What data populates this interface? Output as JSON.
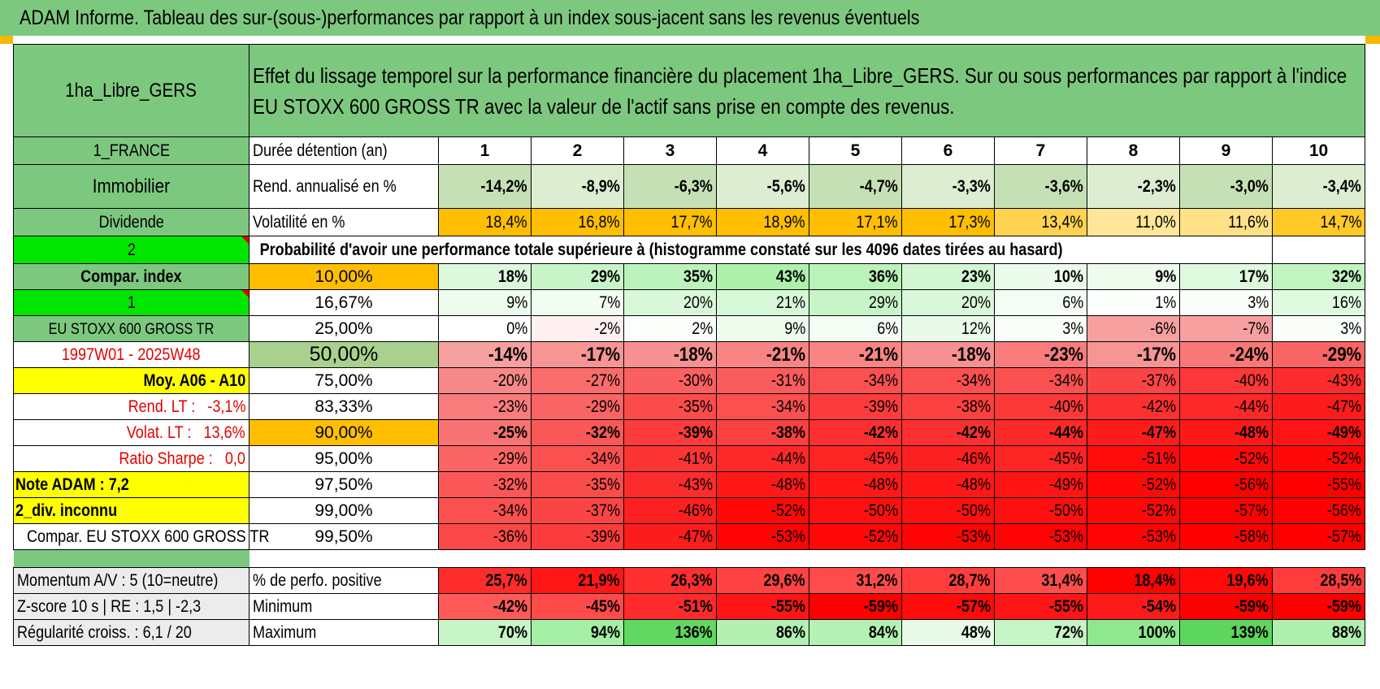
{
  "title": "ADAM Informe. Tableau des sur-(sous-)performances par rapport à un index sous-jacent sans les revenus éventuels",
  "colors": {
    "header_green": "#7dc87f",
    "bright_green": "#00e600",
    "yellow": "#ffff00",
    "orange": "#ffbf00",
    "label_red": "#e60000"
  },
  "left": {
    "name": "1ha_Libre_GERS",
    "country": "1_FRANCE",
    "category": "Immobilier",
    "income": "Dividende",
    "sel_a": "2",
    "compar_label": "Compar. index",
    "sel_b": "1",
    "index_name": "EU STOXX 600 GROSS TR",
    "period": "1997W01 - 2025W48",
    "moy": "Moy. A06 - A10",
    "rend_lt_label": "Rend. LT :",
    "rend_lt_value": "-3,1%",
    "volat_lt_label": "Volat. LT :",
    "volat_lt_value": "13,6%",
    "sharpe_label": "Ratio Sharpe :",
    "sharpe_value": "0,0",
    "note": "Note ADAM : 7,2",
    "div": "2_div. inconnu",
    "compar_full": "Compar. EU STOXX 600 GROSS TR"
  },
  "header_text": "Effet du lissage temporel sur la performance financière du placement 1ha_Libre_GERS. Sur ou sous performances par rapport à l'indice EU STOXX 600 GROSS TR avec la valeur de l'actif sans prise en compte des revenus.",
  "duration_label": "Durée détention (an)",
  "durations": [
    "1",
    "2",
    "3",
    "4",
    "5",
    "6",
    "7",
    "8",
    "9",
    "10"
  ],
  "rend_label": "Rend. annualisé en %",
  "rend": [
    "-14,2%",
    "-8,9%",
    "-6,3%",
    "-5,6%",
    "-4,7%",
    "-3,3%",
    "-3,6%",
    "-2,3%",
    "-3,0%",
    "-3,4%"
  ],
  "vol_label": "Volatilité en %",
  "vol": [
    "18,4%",
    "16,8%",
    "17,7%",
    "18,9%",
    "17,1%",
    "17,3%",
    "13,4%",
    "11,0%",
    "11,6%",
    "14,7%"
  ],
  "prob_text": "Probabilité d'avoir une performance totale supérieure à (histogramme constaté sur les 4096 dates tirées au hasard)",
  "quantiles": [
    {
      "label": "10,00%",
      "values": [
        "18%",
        "29%",
        "35%",
        "43%",
        "36%",
        "23%",
        "10%",
        "9%",
        "17%",
        "32%"
      ]
    },
    {
      "label": "16,67%",
      "values": [
        "9%",
        "7%",
        "20%",
        "21%",
        "29%",
        "20%",
        "6%",
        "1%",
        "3%",
        "16%"
      ]
    },
    {
      "label": "25,00%",
      "values": [
        "0%",
        "-2%",
        "2%",
        "9%",
        "6%",
        "12%",
        "3%",
        "-6%",
        "-7%",
        "3%"
      ]
    },
    {
      "label": "50,00%",
      "values": [
        "-14%",
        "-17%",
        "-18%",
        "-21%",
        "-21%",
        "-18%",
        "-23%",
        "-17%",
        "-24%",
        "-29%"
      ]
    },
    {
      "label": "75,00%",
      "values": [
        "-20%",
        "-27%",
        "-30%",
        "-31%",
        "-34%",
        "-34%",
        "-34%",
        "-37%",
        "-40%",
        "-43%"
      ]
    },
    {
      "label": "83,33%",
      "values": [
        "-23%",
        "-29%",
        "-35%",
        "-34%",
        "-39%",
        "-38%",
        "-40%",
        "-42%",
        "-44%",
        "-47%"
      ]
    },
    {
      "label": "90,00%",
      "values": [
        "-25%",
        "-32%",
        "-39%",
        "-38%",
        "-42%",
        "-42%",
        "-44%",
        "-47%",
        "-48%",
        "-49%"
      ]
    },
    {
      "label": "95,00%",
      "values": [
        "-29%",
        "-34%",
        "-41%",
        "-44%",
        "-45%",
        "-46%",
        "-45%",
        "-51%",
        "-52%",
        "-52%"
      ]
    },
    {
      "label": "97,50%",
      "values": [
        "-32%",
        "-35%",
        "-43%",
        "-48%",
        "-48%",
        "-48%",
        "-49%",
        "-52%",
        "-56%",
        "-55%"
      ]
    },
    {
      "label": "99,00%",
      "values": [
        "-34%",
        "-37%",
        "-46%",
        "-52%",
        "-50%",
        "-50%",
        "-50%",
        "-52%",
        "-57%",
        "-56%"
      ]
    },
    {
      "label": "99,50%",
      "values": [
        "-36%",
        "-39%",
        "-47%",
        "-53%",
        "-52%",
        "-53%",
        "-53%",
        "-53%",
        "-58%",
        "-57%"
      ]
    }
  ],
  "bottom": [
    {
      "left": "Momentum A/V : 5 (10=neutre)",
      "label": "% de perfo. positive",
      "values": [
        "25,7%",
        "21,9%",
        "26,3%",
        "29,6%",
        "31,2%",
        "28,7%",
        "31,4%",
        "18,4%",
        "19,6%",
        "28,5%"
      ]
    },
    {
      "left": "Z-score 10 s | RE : 1,5 | -2,3",
      "label": "Minimum",
      "values": [
        "-42%",
        "-45%",
        "-51%",
        "-55%",
        "-59%",
        "-57%",
        "-55%",
        "-54%",
        "-59%",
        "-59%"
      ]
    },
    {
      "left": "Régularité croiss. : 6,1 / 20",
      "label": "Maximum",
      "values": [
        "70%",
        "94%",
        "136%",
        "86%",
        "84%",
        "48%",
        "72%",
        "100%",
        "139%",
        "88%"
      ]
    }
  ]
}
